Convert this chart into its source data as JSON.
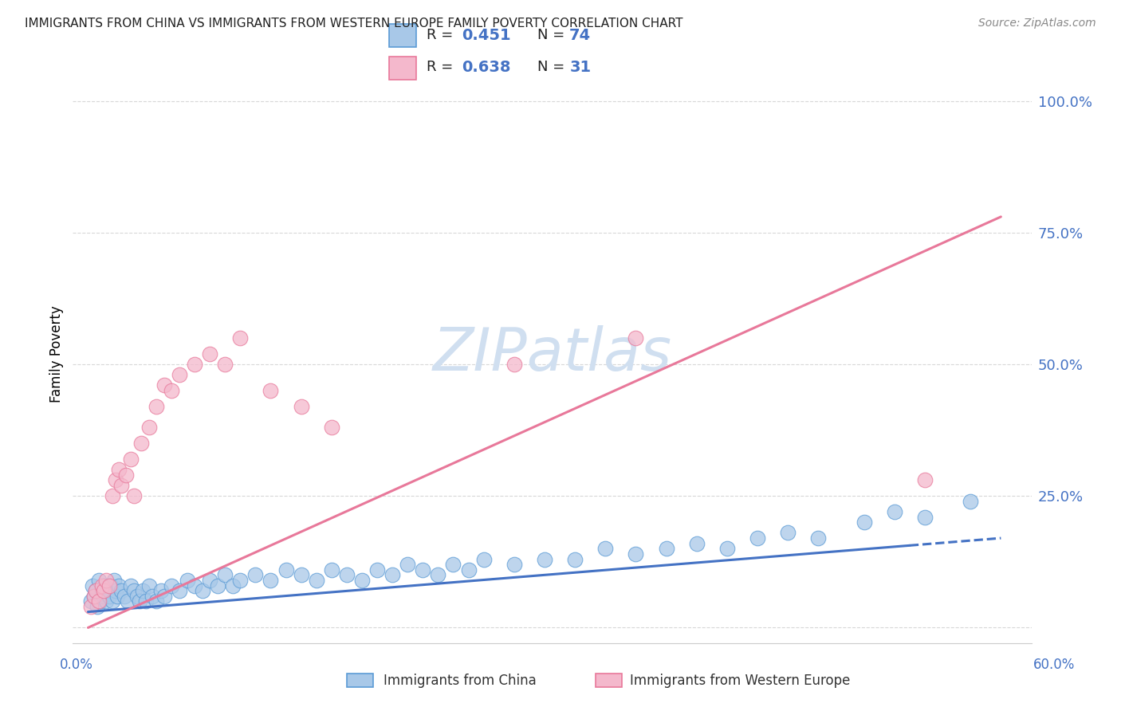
{
  "title": "IMMIGRANTS FROM CHINA VS IMMIGRANTS FROM WESTERN EUROPE FAMILY POVERTY CORRELATION CHART",
  "source": "Source: ZipAtlas.com",
  "ylabel": "Family Poverty",
  "china_R": 0.451,
  "china_N": 74,
  "we_R": 0.638,
  "we_N": 31,
  "china_color": "#a8c8e8",
  "we_color": "#f4b8cc",
  "china_edge_color": "#5b9bd5",
  "we_edge_color": "#e8789a",
  "china_line_color": "#4472c4",
  "we_line_color": "#e8789a",
  "grid_color": "#d8d8d8",
  "bg_color": "#ffffff",
  "watermark_color": "#d0dff0",
  "xlim": [
    0.0,
    0.6
  ],
  "ylim": [
    0.0,
    1.05
  ],
  "yticks": [
    0.0,
    0.25,
    0.5,
    0.75,
    1.0
  ],
  "ytick_labels": [
    "",
    "25.0%",
    "50.0%",
    "75.0%",
    "100.0%"
  ],
  "china_reg": [
    0.03,
    0.17
  ],
  "we_reg": [
    0.0,
    0.78
  ],
  "china_scatter_x": [
    0.002,
    0.003,
    0.004,
    0.005,
    0.006,
    0.007,
    0.008,
    0.009,
    0.01,
    0.011,
    0.012,
    0.013,
    0.014,
    0.015,
    0.016,
    0.017,
    0.018,
    0.019,
    0.02,
    0.022,
    0.024,
    0.026,
    0.028,
    0.03,
    0.032,
    0.034,
    0.036,
    0.038,
    0.04,
    0.042,
    0.045,
    0.048,
    0.05,
    0.055,
    0.06,
    0.065,
    0.07,
    0.075,
    0.08,
    0.085,
    0.09,
    0.095,
    0.1,
    0.11,
    0.12,
    0.13,
    0.14,
    0.15,
    0.16,
    0.17,
    0.18,
    0.19,
    0.2,
    0.21,
    0.22,
    0.23,
    0.24,
    0.25,
    0.26,
    0.28,
    0.3,
    0.32,
    0.34,
    0.36,
    0.38,
    0.4,
    0.42,
    0.44,
    0.46,
    0.48,
    0.51,
    0.53,
    0.55,
    0.58
  ],
  "china_scatter_y": [
    0.05,
    0.08,
    0.06,
    0.07,
    0.04,
    0.09,
    0.05,
    0.07,
    0.06,
    0.08,
    0.05,
    0.07,
    0.06,
    0.08,
    0.05,
    0.09,
    0.07,
    0.06,
    0.08,
    0.07,
    0.06,
    0.05,
    0.08,
    0.07,
    0.06,
    0.05,
    0.07,
    0.05,
    0.08,
    0.06,
    0.05,
    0.07,
    0.06,
    0.08,
    0.07,
    0.09,
    0.08,
    0.07,
    0.09,
    0.08,
    0.1,
    0.08,
    0.09,
    0.1,
    0.09,
    0.11,
    0.1,
    0.09,
    0.11,
    0.1,
    0.09,
    0.11,
    0.1,
    0.12,
    0.11,
    0.1,
    0.12,
    0.11,
    0.13,
    0.12,
    0.13,
    0.13,
    0.15,
    0.14,
    0.15,
    0.16,
    0.15,
    0.17,
    0.18,
    0.17,
    0.2,
    0.22,
    0.21,
    0.24
  ],
  "we_scatter_x": [
    0.002,
    0.004,
    0.005,
    0.007,
    0.009,
    0.01,
    0.012,
    0.014,
    0.016,
    0.018,
    0.02,
    0.022,
    0.025,
    0.028,
    0.03,
    0.035,
    0.04,
    0.045,
    0.05,
    0.055,
    0.06,
    0.07,
    0.08,
    0.09,
    0.1,
    0.12,
    0.14,
    0.16,
    0.28,
    0.36,
    0.55
  ],
  "we_scatter_y": [
    0.04,
    0.06,
    0.07,
    0.05,
    0.08,
    0.07,
    0.09,
    0.08,
    0.25,
    0.28,
    0.3,
    0.27,
    0.29,
    0.32,
    0.25,
    0.35,
    0.38,
    0.42,
    0.46,
    0.45,
    0.48,
    0.5,
    0.52,
    0.5,
    0.55,
    0.45,
    0.42,
    0.38,
    0.5,
    0.55,
    0.28
  ]
}
